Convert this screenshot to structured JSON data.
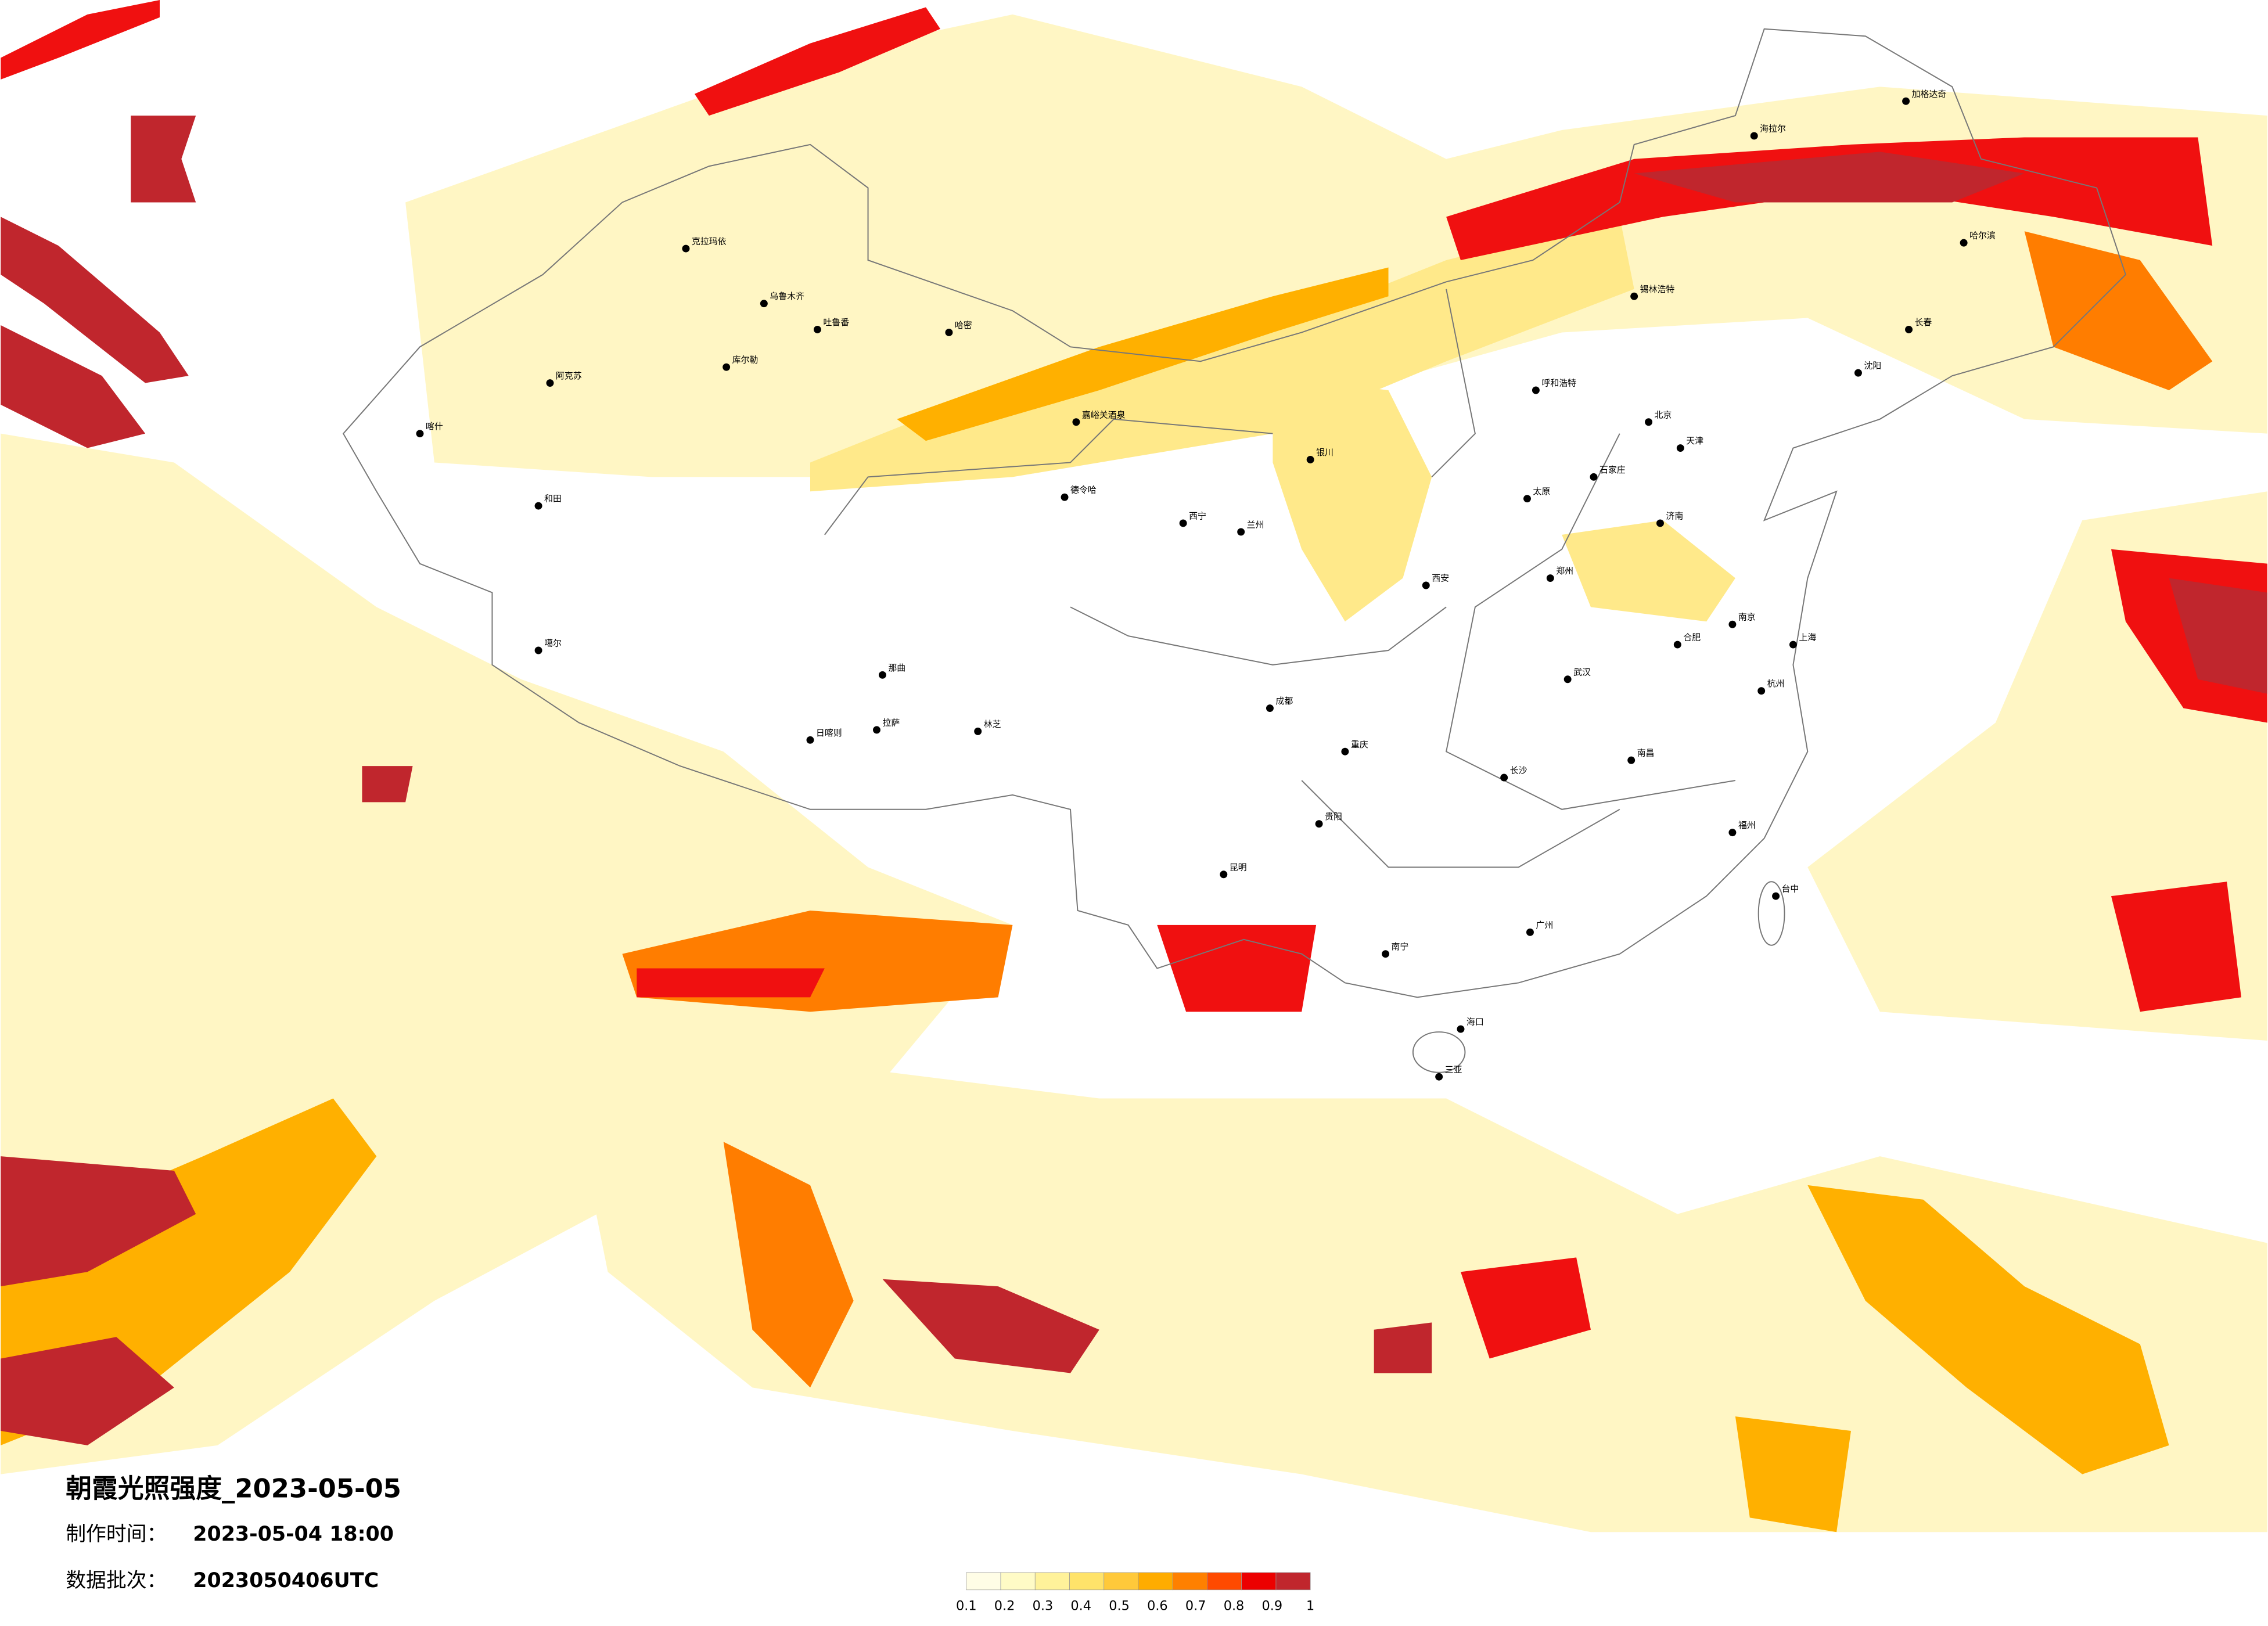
{
  "title": "朝霞光照强度_2023-05-05",
  "make_time": {
    "label": "制作时间：",
    "value": "2023-05-04 18:00"
  },
  "batch": {
    "label": "数据批次：",
    "value": "2023050406UTC"
  },
  "legend": {
    "ticks": [
      0.1,
      0.2,
      0.3,
      0.4,
      0.5,
      0.6,
      0.7,
      0.8,
      0.9,
      1
    ],
    "colors": [
      "#fffde6",
      "#fffbc6",
      "#fff29a",
      "#ffe36a",
      "#ffc93a",
      "#ffac00",
      "#ff8000",
      "#ff4a00",
      "#ec0000",
      "#c0262d"
    ]
  },
  "cities": [
    "克拉玛依",
    "乌鲁木齐",
    "吐鲁番",
    "哈密",
    "库尔勒",
    "阿克苏",
    "喀什",
    "和田",
    "嘉峪关酒泉",
    "德令哈",
    "那曲",
    "拉萨",
    "日喀则",
    "林芝",
    "噶尔",
    "海拉尔",
    "加格达奇",
    "哈尔滨",
    "长春",
    "沈阳",
    "锡林浩特",
    "呼和浩特",
    "北京",
    "天津",
    "石家庄",
    "太原",
    "济南",
    "郑州",
    "西安",
    "兰州",
    "西宁",
    "银川",
    "成都",
    "重庆",
    "贵阳",
    "昆明",
    "南宁",
    "广州",
    "长沙",
    "武汉",
    "南京",
    "上海",
    "杭州",
    "福州",
    "南昌",
    "合肥",
    "海口",
    "三亚",
    "台中"
  ]
}
